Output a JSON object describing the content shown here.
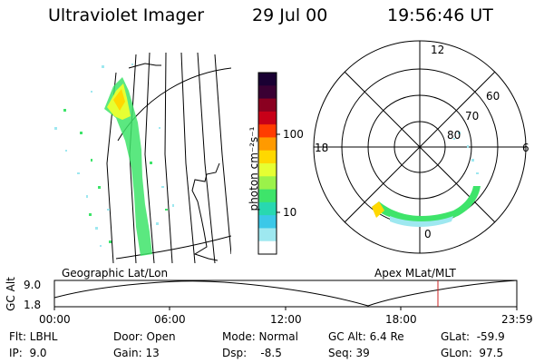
{
  "header": {
    "title": "Ultraviolet Imager",
    "date": "29 Jul 00",
    "time": "19:56:46 UT"
  },
  "left_panel": {
    "caption": "Geographic Lat/Lon"
  },
  "polar_panel": {
    "caption": "Apex MLat/MLT",
    "mlt_labels": {
      "top": "12",
      "right": "6",
      "bottom": "0",
      "left": "18"
    },
    "lat_labels": [
      "60",
      "70",
      "80"
    ]
  },
  "colorbar": {
    "unit_label": "photon cm⁻²s⁻¹",
    "tick_labels": [
      "100",
      "10"
    ],
    "colors": [
      "#1a0033",
      "#3a0033",
      "#8a0020",
      "#c80018",
      "#ff3c00",
      "#ff9a00",
      "#ffd800",
      "#e6ff33",
      "#9bf24a",
      "#3ee46a",
      "#28d8b0",
      "#3bc8e8",
      "#9ee8f0",
      "#ffffff"
    ]
  },
  "altitude_plot": {
    "axis_label": "GC Alt",
    "y_labels": [
      "9.0",
      "1.8"
    ],
    "x_labels": [
      "00:00",
      "06:00",
      "12:00",
      "18:00",
      "23:59"
    ],
    "marker_color": "#cc2222"
  },
  "info": {
    "flt": "Flt: LBHL",
    "ip": "IP:  9.0",
    "door": "Door: Open",
    "gain": "Gain: 13",
    "mode": "Mode: Normal",
    "dsp": "Dsp:    -8.5",
    "gc_alt": "GC Alt: 6.4 Re",
    "seq": "Seq: 39",
    "glat": "GLat:  -59.9",
    "glon": "GLon:  97.5"
  }
}
